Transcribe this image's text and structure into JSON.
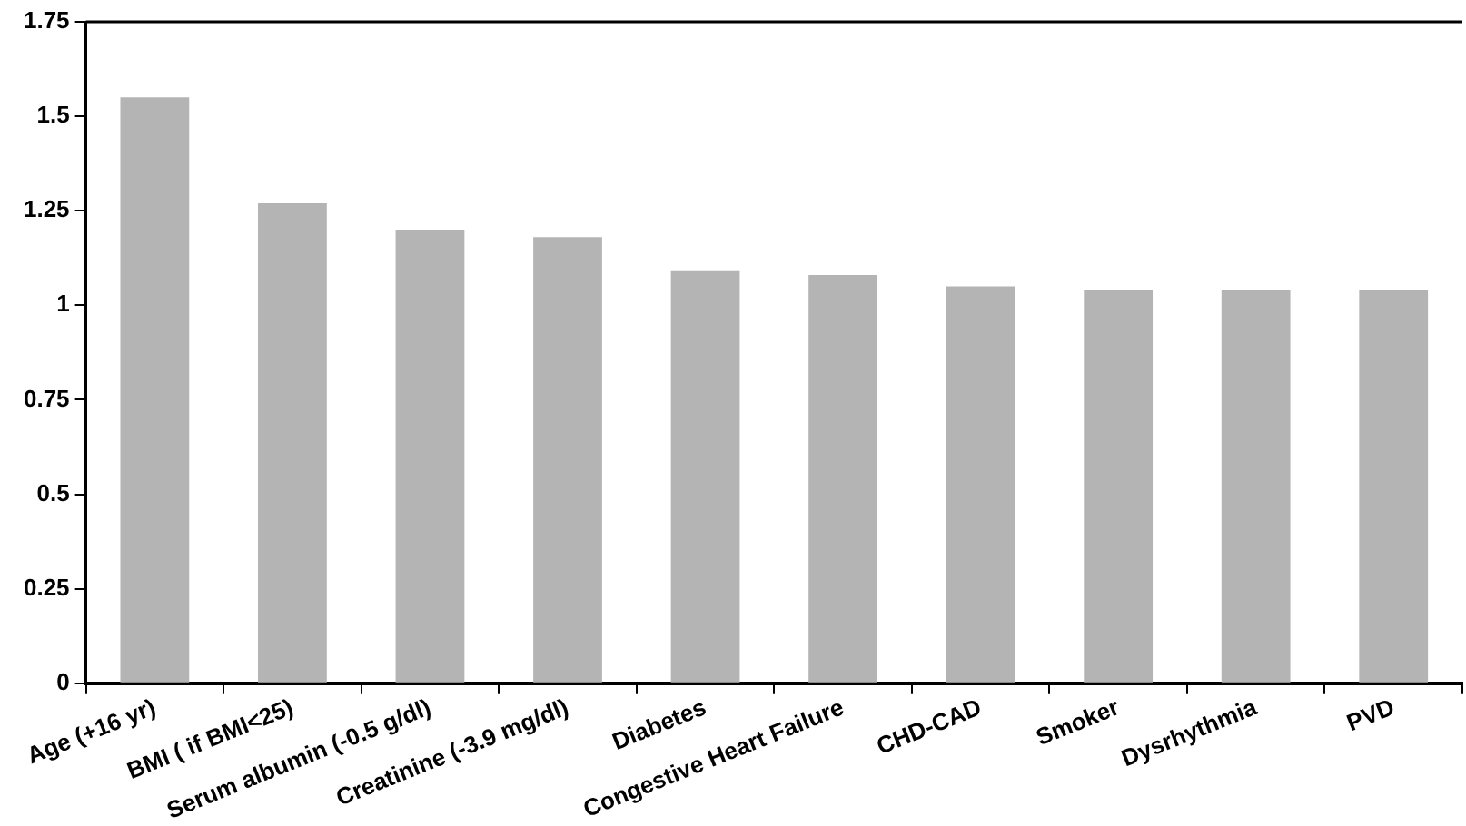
{
  "chart_data": {
    "type": "bar",
    "categories": [
      "Age (+16 yr)",
      "BMI ( if BMI<25)",
      "Serum albumin (-0.5 g/dl)",
      "Creatinine (-3.9 mg/dl)",
      "Diabetes",
      "Congestive Heart Failure",
      "CHD-CAD",
      "Smoker",
      "Dysrhythmia",
      "PVD"
    ],
    "values": [
      1.55,
      1.27,
      1.2,
      1.18,
      1.09,
      1.08,
      1.05,
      1.04,
      1.04,
      1.04
    ],
    "color": "#b4b4b4",
    "ylim": [
      0,
      1.75
    ],
    "yticks": [
      0,
      0.25,
      0.5,
      0.75,
      1,
      1.25,
      1.5,
      1.75
    ],
    "grid": false,
    "legend": false
  }
}
